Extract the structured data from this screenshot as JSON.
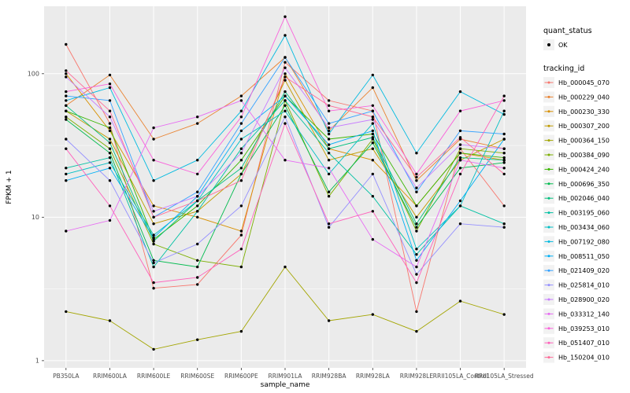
{
  "figure": {
    "background": "#FFFFFF",
    "panel_bg": "#EBEBEB",
    "grid_major": "#FFFFFF",
    "grid_minor": "#FFFFFF",
    "tick_text_color": "#4D4D4D",
    "axis_title_color": "#000000",
    "tick_mark_color": "#333333",
    "point_color": "#000000",
    "legend_key_bg": "#F2F2F2"
  },
  "chart_data": {
    "type": "line",
    "title": "",
    "xlabel": "sample_name",
    "ylabel": "FPKM + 1",
    "y_scale": "log10",
    "grid": true,
    "legend_position": "right",
    "y_ticks": [
      1,
      10,
      100
    ],
    "y_tick_labels": [
      "1",
      "10",
      "100"
    ],
    "y_minor_ticks": [
      3.162,
      31.62
    ],
    "ylim": [
      0.9,
      295
    ],
    "categories": [
      "PB350LA",
      "RRIM600LA",
      "RRIM600LE",
      "RRIM600SE",
      "RRIM600PE",
      "RRIM901LA",
      "RRIM928BA",
      "RRIM928LA",
      "RRIM928LE",
      "RRII105LA_Control",
      "RRII105LA_Stressed"
    ],
    "legend_quant": {
      "title": "quant_status",
      "items": [
        {
          "label": "OK"
        }
      ]
    },
    "legend_tracking_title": "tracking_id",
    "series": [
      {
        "name": "Hb_000045_070",
        "color": "#F8766D",
        "values": [
          160,
          45,
          3.2,
          3.4,
          7.5,
          120,
          65,
          55,
          2.2,
          30,
          12
        ]
      },
      {
        "name": "Hb_000229_040",
        "color": "#EA8331",
        "values": [
          60,
          98,
          35,
          45,
          70,
          130,
          40,
          80,
          18,
          35,
          30
        ]
      },
      {
        "name": "Hb_000230_330",
        "color": "#D89000",
        "values": [
          100,
          40,
          12,
          10,
          8,
          100,
          30,
          25,
          12,
          28,
          25
        ]
      },
      {
        "name": "Hb_000307_200",
        "color": "#C09B00",
        "values": [
          55,
          35,
          9,
          11,
          20,
          90,
          25,
          30,
          10,
          25,
          35
        ]
      },
      {
        "name": "Hb_000364_150",
        "color": "#A3A500",
        "values": [
          2.2,
          1.9,
          1.2,
          1.4,
          1.6,
          4.5,
          1.9,
          2.1,
          1.6,
          2.6,
          2.1
        ]
      },
      {
        "name": "Hb_000384_090",
        "color": "#7CAE00",
        "values": [
          50,
          30,
          6.5,
          5,
          4.5,
          65,
          14,
          35,
          8,
          30,
          28
        ]
      },
      {
        "name": "Hb_000424_240",
        "color": "#39B600",
        "values": [
          55,
          42,
          7,
          12,
          25,
          70,
          35,
          38,
          12,
          28,
          26
        ]
      },
      {
        "name": "Hb_000696_350",
        "color": "#00BB4E",
        "values": [
          48,
          28,
          5,
          4.5,
          20,
          60,
          15,
          33,
          8.5,
          22,
          24
        ]
      },
      {
        "name": "Hb_002046_040",
        "color": "#00BF7D",
        "values": [
          60,
          33,
          6.8,
          13,
          22,
          75,
          30,
          36,
          9,
          26,
          25
        ]
      },
      {
        "name": "Hb_003195_060",
        "color": "#00C1A3",
        "values": [
          22,
          26,
          4.5,
          11,
          30,
          65,
          28,
          14,
          5.5,
          12,
          9
        ]
      },
      {
        "name": "Hb_003434_060",
        "color": "#00BFC4",
        "values": [
          20,
          24,
          7.5,
          13,
          35,
          55,
          20,
          45,
          6,
          12,
          55
        ]
      },
      {
        "name": "Hb_007192_080",
        "color": "#00BAE0",
        "values": [
          65,
          80,
          18,
          25,
          55,
          185,
          38,
          98,
          28,
          75,
          52
        ]
      },
      {
        "name": "Hb_008511_050",
        "color": "#00B0F6",
        "values": [
          18,
          22,
          7.2,
          14,
          40,
          70,
          32,
          40,
          5,
          13,
          35
        ]
      },
      {
        "name": "Hb_021409_020",
        "color": "#35A2FF",
        "values": [
          70,
          65,
          10,
          15,
          45,
          130,
          45,
          55,
          15,
          40,
          38
        ]
      },
      {
        "name": "Hb_025814_010",
        "color": "#9590FF",
        "values": [
          35,
          18,
          4.8,
          6.5,
          12,
          50,
          8.5,
          20,
          4,
          9,
          8.5
        ]
      },
      {
        "name": "Hb_028900_020",
        "color": "#C77CFF",
        "values": [
          95,
          50,
          11,
          14,
          28,
          110,
          42,
          48,
          16,
          32,
          30
        ]
      },
      {
        "name": "Hb_033312_140",
        "color": "#E76BF3",
        "values": [
          8,
          9.5,
          42,
          50,
          65,
          25,
          22,
          7,
          4.5,
          25,
          22
        ]
      },
      {
        "name": "Hb_039253_010",
        "color": "#FA62DB",
        "values": [
          75,
          85,
          25,
          20,
          50,
          250,
          55,
          60,
          20,
          55,
          65
        ]
      },
      {
        "name": "Hb_051407_010",
        "color": "#FF62BC",
        "values": [
          30,
          12,
          3.5,
          3.8,
          6,
          45,
          9,
          11,
          3.5,
          20,
          70
        ]
      },
      {
        "name": "Hb_150204_010",
        "color": "#FF6A98",
        "values": [
          105,
          55,
          10,
          13,
          18,
          95,
          60,
          50,
          19,
          36,
          20
        ]
      }
    ]
  }
}
